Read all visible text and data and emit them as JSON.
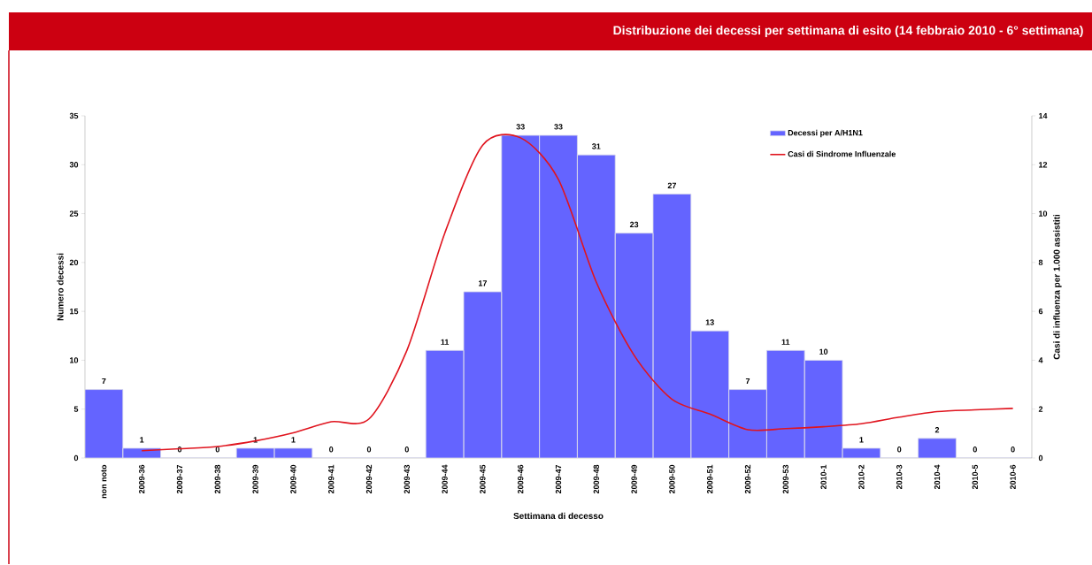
{
  "chart_data": {
    "type": "bar",
    "title": "Distribuzione dei decessi per settimana di esito (14 febbraio 2010 - 6° settimana)",
    "xlabel": "Settimana di decesso",
    "ylabel": "Numero decessi",
    "y2label": "Casi di influenza per 1.000 assistiti",
    "categories": [
      "non noto",
      "2009-36",
      "2009-37",
      "2009-38",
      "2009-39",
      "2009-40",
      "2009-41",
      "2009-42",
      "2009-43",
      "2009-44",
      "2009-45",
      "2009-46",
      "2009-47",
      "2009-48",
      "2009-49",
      "2009-50",
      "2009-51",
      "2009-52",
      "2009-53",
      "2010-1",
      "2010-2",
      "2010-3",
      "2010-4",
      "2010-5",
      "2010-6"
    ],
    "series": [
      {
        "name": "Decessi per A/H1N1",
        "color": "#6464ff",
        "data_labels": true,
        "values": [
          7,
          1,
          0,
          0,
          1,
          1,
          0,
          0,
          0,
          11,
          17,
          33,
          33,
          31,
          23,
          27,
          13,
          7,
          11,
          10,
          1,
          0,
          2,
          0,
          0
        ]
      },
      {
        "name": "Casi di Sindrome Influenzale",
        "type": "line",
        "axis": "y2",
        "color": "#e0141e",
        "values": [
          null,
          0.3,
          0.38,
          0.47,
          0.7,
          1.03,
          1.48,
          1.6,
          4.4,
          9.2,
          12.8,
          13.1,
          11.4,
          7.2,
          4.2,
          2.4,
          1.8,
          1.16,
          1.2,
          1.28,
          1.4,
          1.67,
          1.9,
          1.97,
          2.03
        ]
      }
    ],
    "ylim": [
      0,
      35
    ],
    "yticks": [
      0,
      5,
      10,
      15,
      20,
      25,
      30,
      35
    ],
    "y2lim": [
      0,
      14
    ],
    "y2ticks": [
      0,
      2,
      4,
      6,
      8,
      10,
      12,
      14
    ],
    "legend": "top right",
    "grid": false
  }
}
